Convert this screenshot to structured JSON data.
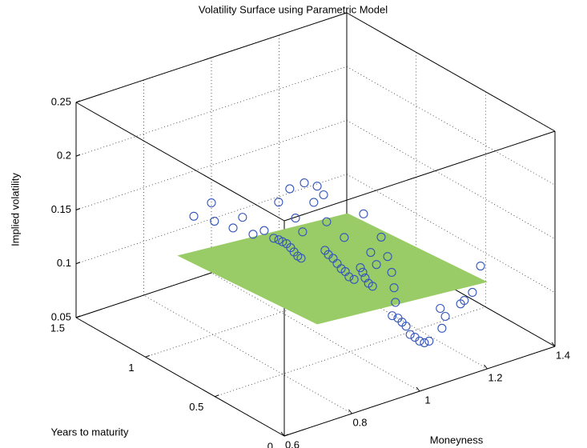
{
  "chart_data": {
    "type": "scatter3d",
    "title": "Volatility Surface using Parametric Model",
    "xlabel": "Moneyness",
    "ylabel": "Years to maturity",
    "zlabel": "Implied volatility",
    "xlim": [
      0.6,
      1.4
    ],
    "xticks": [
      0.6,
      0.8,
      1,
      1.2,
      1.4
    ],
    "ylim": [
      0,
      1.5
    ],
    "yticks": [
      0,
      0.5,
      1,
      1.5
    ],
    "zlim": [
      0.05,
      0.25
    ],
    "zticks": [
      0.05,
      0.1,
      0.15,
      0.2,
      0.25
    ],
    "grid": true,
    "surface": {
      "color": "#99cc66",
      "x": [
        0.8,
        1.3
      ],
      "y": [
        0.25,
        1.25
      ],
      "z": [
        [
          0.115,
          0.102
        ],
        [
          0.105,
          0.092
        ]
      ]
    },
    "series": [
      {
        "color": "#3355bb",
        "x": [
          0.948,
          1.0,
          1.009,
          1.064,
          1.092,
          1.123,
          1.156,
          1.096,
          1.129,
          1.172,
          1.21,
          1.229,
          1.2,
          1.146,
          1.167,
          1.238,
          1.29,
          1.347,
          0.979,
          0.994,
          1.005,
          1.017,
          1.029,
          1.039,
          1.05,
          1.06,
          1.028,
          1.038,
          1.052,
          1.064,
          1.076,
          1.088,
          1.099,
          1.114,
          1.03,
          1.037,
          1.044,
          1.054,
          1.066,
          0.958,
          0.975,
          0.989,
          1.008,
          1.02,
          1.027,
          1.031,
          0.96,
          0.977,
          0.989,
          1.001,
          1.013,
          1.027,
          1.041,
          1.055,
          1.069,
          1.102,
          1.117,
          1.107,
          1.162,
          1.173,
          1.197,
          1.221
        ],
        "y": [
          1.5,
          1.5,
          1.5,
          1.5,
          1.5,
          1.5,
          1.5,
          1.25,
          1.25,
          1.25,
          1.25,
          1.25,
          1.25,
          1.25,
          1.25,
          1.25,
          1.25,
          1.25,
          1,
          1,
          1,
          1,
          1,
          1,
          1,
          1,
          0.75,
          0.75,
          0.75,
          0.75,
          0.75,
          0.75,
          0.75,
          0.75,
          0.5,
          0.5,
          0.5,
          0.5,
          0.5,
          0.25,
          0.25,
          0.25,
          0.25,
          0.25,
          0.25,
          0.25,
          0.1,
          0.1,
          0.1,
          0.1,
          0.1,
          0.1,
          0.1,
          0.1,
          0.1,
          0.1,
          0.1,
          0.1,
          0.1,
          0.1,
          0.1,
          0.1
        ],
        "z": [
          0.108,
          0.115,
          0.097,
          0.085,
          0.092,
          0.073,
          0.073,
          0.124,
          0.133,
          0.134,
          0.127,
          0.117,
          0.113,
          0.104,
          0.089,
          0.091,
          0.071,
          0.087,
          0.121,
          0.118,
          0.115,
          0.112,
          0.107,
          0.102,
          0.097,
          0.094,
          0.123,
          0.118,
          0.113,
          0.107,
          0.101,
          0.097,
          0.091,
          0.087,
          0.125,
          0.12,
          0.114,
          0.108,
          0.104,
          0.165,
          0.152,
          0.176,
          0.156,
          0.14,
          0.125,
          0.111,
          0.117,
          0.113,
          0.108,
          0.103,
          0.094,
          0.09,
          0.085,
          0.082,
          0.082,
          0.109,
          0.1,
          0.09,
          0.107,
          0.109,
          0.114,
          0.136
        ]
      }
    ]
  }
}
